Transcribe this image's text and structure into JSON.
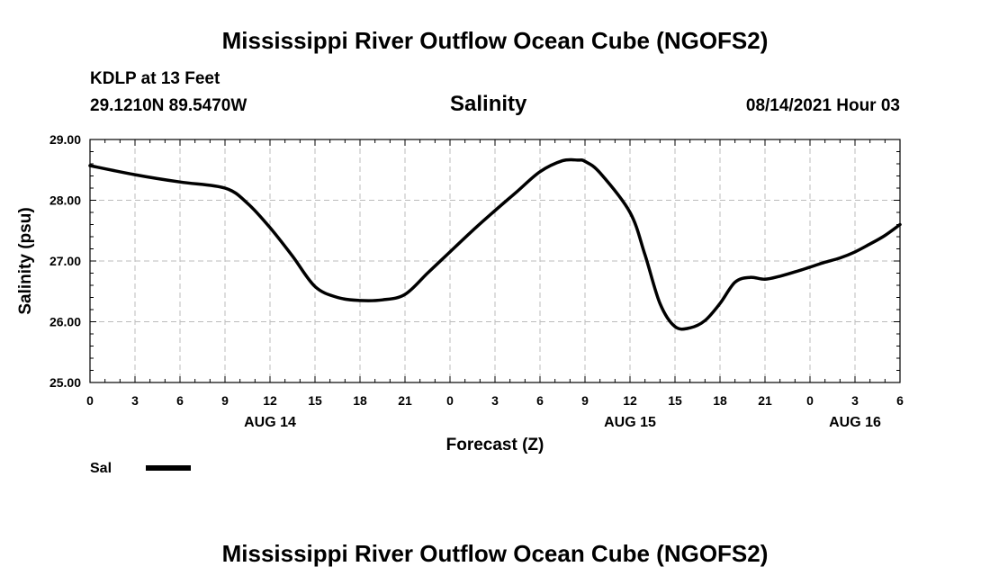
{
  "header": {
    "title_top": "Mississippi River Outflow Ocean Cube (NGOFS2)",
    "station": "KDLP at 13 Feet",
    "coords": "29.1210N  89.5470W",
    "variable": "Salinity",
    "datetime": "08/14/2021 Hour 03",
    "title_bottom": "Mississippi River Outflow Ocean Cube (NGOFS2)"
  },
  "legend": {
    "label": "Sal"
  },
  "colors": {
    "line": "#000000",
    "grid": "#bbbbbb"
  },
  "chart_data": {
    "type": "line",
    "title": "Salinity",
    "xlabel": "Forecast (Z)",
    "ylabel": "Salinity (psu)",
    "xlim": [
      0,
      54
    ],
    "ylim": [
      25.0,
      29.0
    ],
    "yticks": [
      "25.00",
      "26.00",
      "27.00",
      "28.00",
      "29.00"
    ],
    "xtick_labels": [
      "0",
      "3",
      "6",
      "9",
      "12",
      "15",
      "18",
      "21",
      "0",
      "3",
      "6",
      "9",
      "12",
      "15",
      "18",
      "21",
      "0",
      "3",
      "6"
    ],
    "date_labels": [
      {
        "label": "AUG 14",
        "hour": 12
      },
      {
        "label": "AUG 15",
        "hour": 36
      },
      {
        "label": "AUG 16",
        "hour": 51
      }
    ],
    "series": [
      {
        "name": "Sal",
        "x": [
          0,
          3,
          6,
          9,
          10.5,
          12,
          13.5,
          15,
          16.5,
          18,
          19.5,
          21,
          22.5,
          24,
          25.5,
          27,
          28.5,
          30,
          31.5,
          32.5,
          33,
          34,
          36,
          37,
          38,
          39,
          40,
          41,
          42,
          43,
          44,
          45,
          46,
          47,
          48,
          49,
          50,
          51,
          52,
          53,
          54
        ],
        "y": [
          28.57,
          28.42,
          28.3,
          28.2,
          27.95,
          27.55,
          27.08,
          26.58,
          26.4,
          26.35,
          26.36,
          26.45,
          26.8,
          27.15,
          27.5,
          27.83,
          28.15,
          28.47,
          28.65,
          28.66,
          28.64,
          28.45,
          27.8,
          27.1,
          26.3,
          25.92,
          25.9,
          26.02,
          26.3,
          26.65,
          26.73,
          26.7,
          26.75,
          26.82,
          26.9,
          26.98,
          27.05,
          27.15,
          27.28,
          27.42,
          27.6
        ]
      }
    ]
  }
}
